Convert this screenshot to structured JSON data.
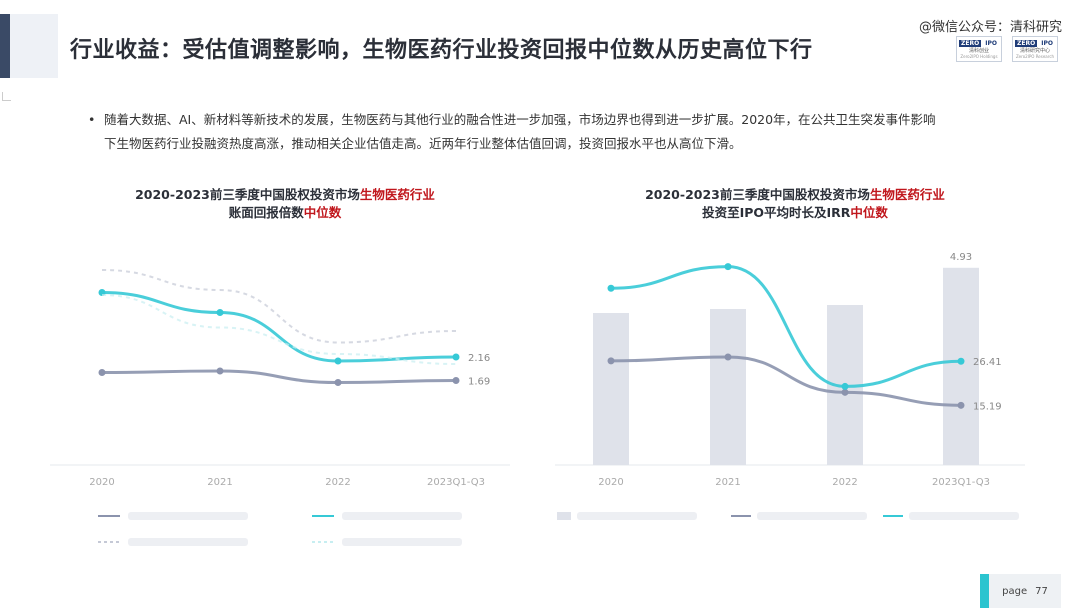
{
  "header": {
    "title": "行业收益：受估值调整影响，生物医药行业投资回报中位数从历史高位下行",
    "watermark": "@微信公众号：清科研究",
    "logos": [
      {
        "top_left": "ZERO",
        "top_right": "IPO",
        "name": "清科创业",
        "sub": "Zero2IPO Holdings"
      },
      {
        "top_left": "ZERO",
        "top_right": "IPO",
        "name": "清科研究中心",
        "sub": "Zero2IPO Research"
      }
    ]
  },
  "bullet": {
    "line1": "随着大数据、AI、新材料等新技术的发展，生物医药与其他行业的融合性进一步加强，市场边界也得到进一步扩展。2020年，在公共卫生突发事件影响",
    "line2": "下生物医药行业投融资热度高涨，推动相关企业估值走高。近两年行业整体估值回调，投资回报水平也从高位下滑。"
  },
  "charts": {
    "left": {
      "title_line1_prefix": "2020-2023前三季度中国股权投资市场",
      "title_line1_highlight": "生物医药行业",
      "title_line2_prefix": "账面回报倍数",
      "title_line2_highlight": "中位数"
    },
    "right": {
      "title_line1_prefix": "2020-2023前三季度中国股权投资市场",
      "title_line1_highlight": "生物医药行业",
      "title_line2_prefix": "投资至IPO平均时长及IRR",
      "title_line2_highlight": "中位数"
    }
  },
  "chart_data": [
    {
      "type": "line",
      "categories": [
        "2020",
        "2021",
        "2022",
        "2023Q1-Q3"
      ],
      "series": [
        {
          "values": [
            1.85,
            1.88,
            1.65,
            1.69
          ],
          "color": "#8b93ad"
        },
        {
          "values": [
            3.45,
            3.05,
            2.08,
            2.16
          ],
          "color": "#36c9d6"
        },
        {
          "values": [
            3.9,
            3.5,
            2.45,
            2.68
          ],
          "color": "#c5c9d6"
        },
        {
          "values": [
            3.4,
            2.75,
            2.22,
            2.02
          ],
          "color": "#c7eef1"
        }
      ],
      "data_labels": [
        "2.16",
        "1.69"
      ]
    },
    {
      "type": "bar",
      "categories": [
        "2020",
        "2021",
        "2022",
        "2023Q1-Q3"
      ],
      "bars": {
        "values": [
          3.8,
          3.9,
          4.0,
          4.93
        ],
        "color": "#dfe2ea"
      },
      "bar_labels": [
        "",
        "",
        "",
        "4.93"
      ],
      "series": [
        {
          "values": [
            26.5,
            27.5,
            18.5,
            15.19
          ],
          "color": "#8b93ad"
        },
        {
          "values": [
            45,
            50.5,
            20,
            26.41
          ],
          "color": "#36c9d6"
        }
      ],
      "line_labels": [
        "26.41",
        "15.19"
      ]
    }
  ],
  "footer": {
    "page_label": "page",
    "page_number": "77"
  }
}
